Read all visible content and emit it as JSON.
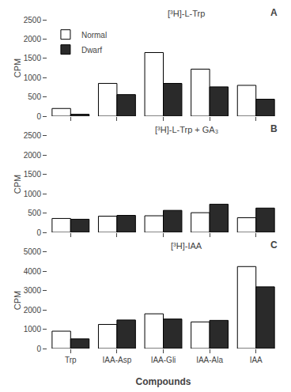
{
  "chart_data": [
    {
      "type": "bar",
      "title": "[³H]-L-Trp",
      "annotations": [
        "A"
      ],
      "categories": [
        "Trp",
        "IAA-Asp",
        "IAA-Gli",
        "IAA-Ala",
        "IAA"
      ],
      "series": [
        {
          "name": "Normal",
          "color": "#ffffff",
          "values": [
            200,
            850,
            1650,
            1220,
            800
          ]
        },
        {
          "name": "Dwarf",
          "color": "#2a2a2a",
          "values": [
            50,
            560,
            850,
            760,
            440
          ]
        }
      ],
      "ylabel": "CPM",
      "ylim": [
        0,
        2500
      ],
      "yticks": [
        0,
        500,
        1000,
        1500,
        2000,
        2500
      ],
      "grid": false,
      "legend": "upper left",
      "tick_labels": "y"
    },
    {
      "type": "bar",
      "title": "[³H]-L-Trp + GA₃",
      "annotations": [
        "B"
      ],
      "categories": [
        "Trp",
        "IAA-Asp",
        "IAA-Gli",
        "IAA-Ala",
        "IAA"
      ],
      "series": [
        {
          "name": "Normal",
          "color": "#ffffff",
          "values": [
            360,
            420,
            430,
            510,
            380
          ]
        },
        {
          "name": "Dwarf",
          "color": "#2a2a2a",
          "values": [
            340,
            440,
            570,
            730,
            630
          ]
        }
      ],
      "ylabel": "CPM",
      "ylim": [
        0,
        2500
      ],
      "yticks": [
        0,
        500,
        1000,
        1500,
        2000,
        2500
      ],
      "grid": false,
      "tick_labels": "y"
    },
    {
      "type": "bar",
      "title": "[³H]-IAA",
      "annotations": [
        "C"
      ],
      "categories": [
        "Trp",
        "IAA-Asp",
        "IAA-Gli",
        "IAA-Ala",
        "IAA"
      ],
      "series": [
        {
          "name": "Normal",
          "color": "#ffffff",
          "values": [
            900,
            1250,
            1800,
            1380,
            4250
          ]
        },
        {
          "name": "Dwarf",
          "color": "#2a2a2a",
          "values": [
            500,
            1480,
            1530,
            1460,
            3200
          ]
        }
      ],
      "xlabel": "Compounds",
      "ylabel": "CPM",
      "ylim": [
        0,
        5000
      ],
      "yticks": [
        0,
        1000,
        2000,
        3000,
        4000,
        5000
      ],
      "grid": false
    }
  ]
}
